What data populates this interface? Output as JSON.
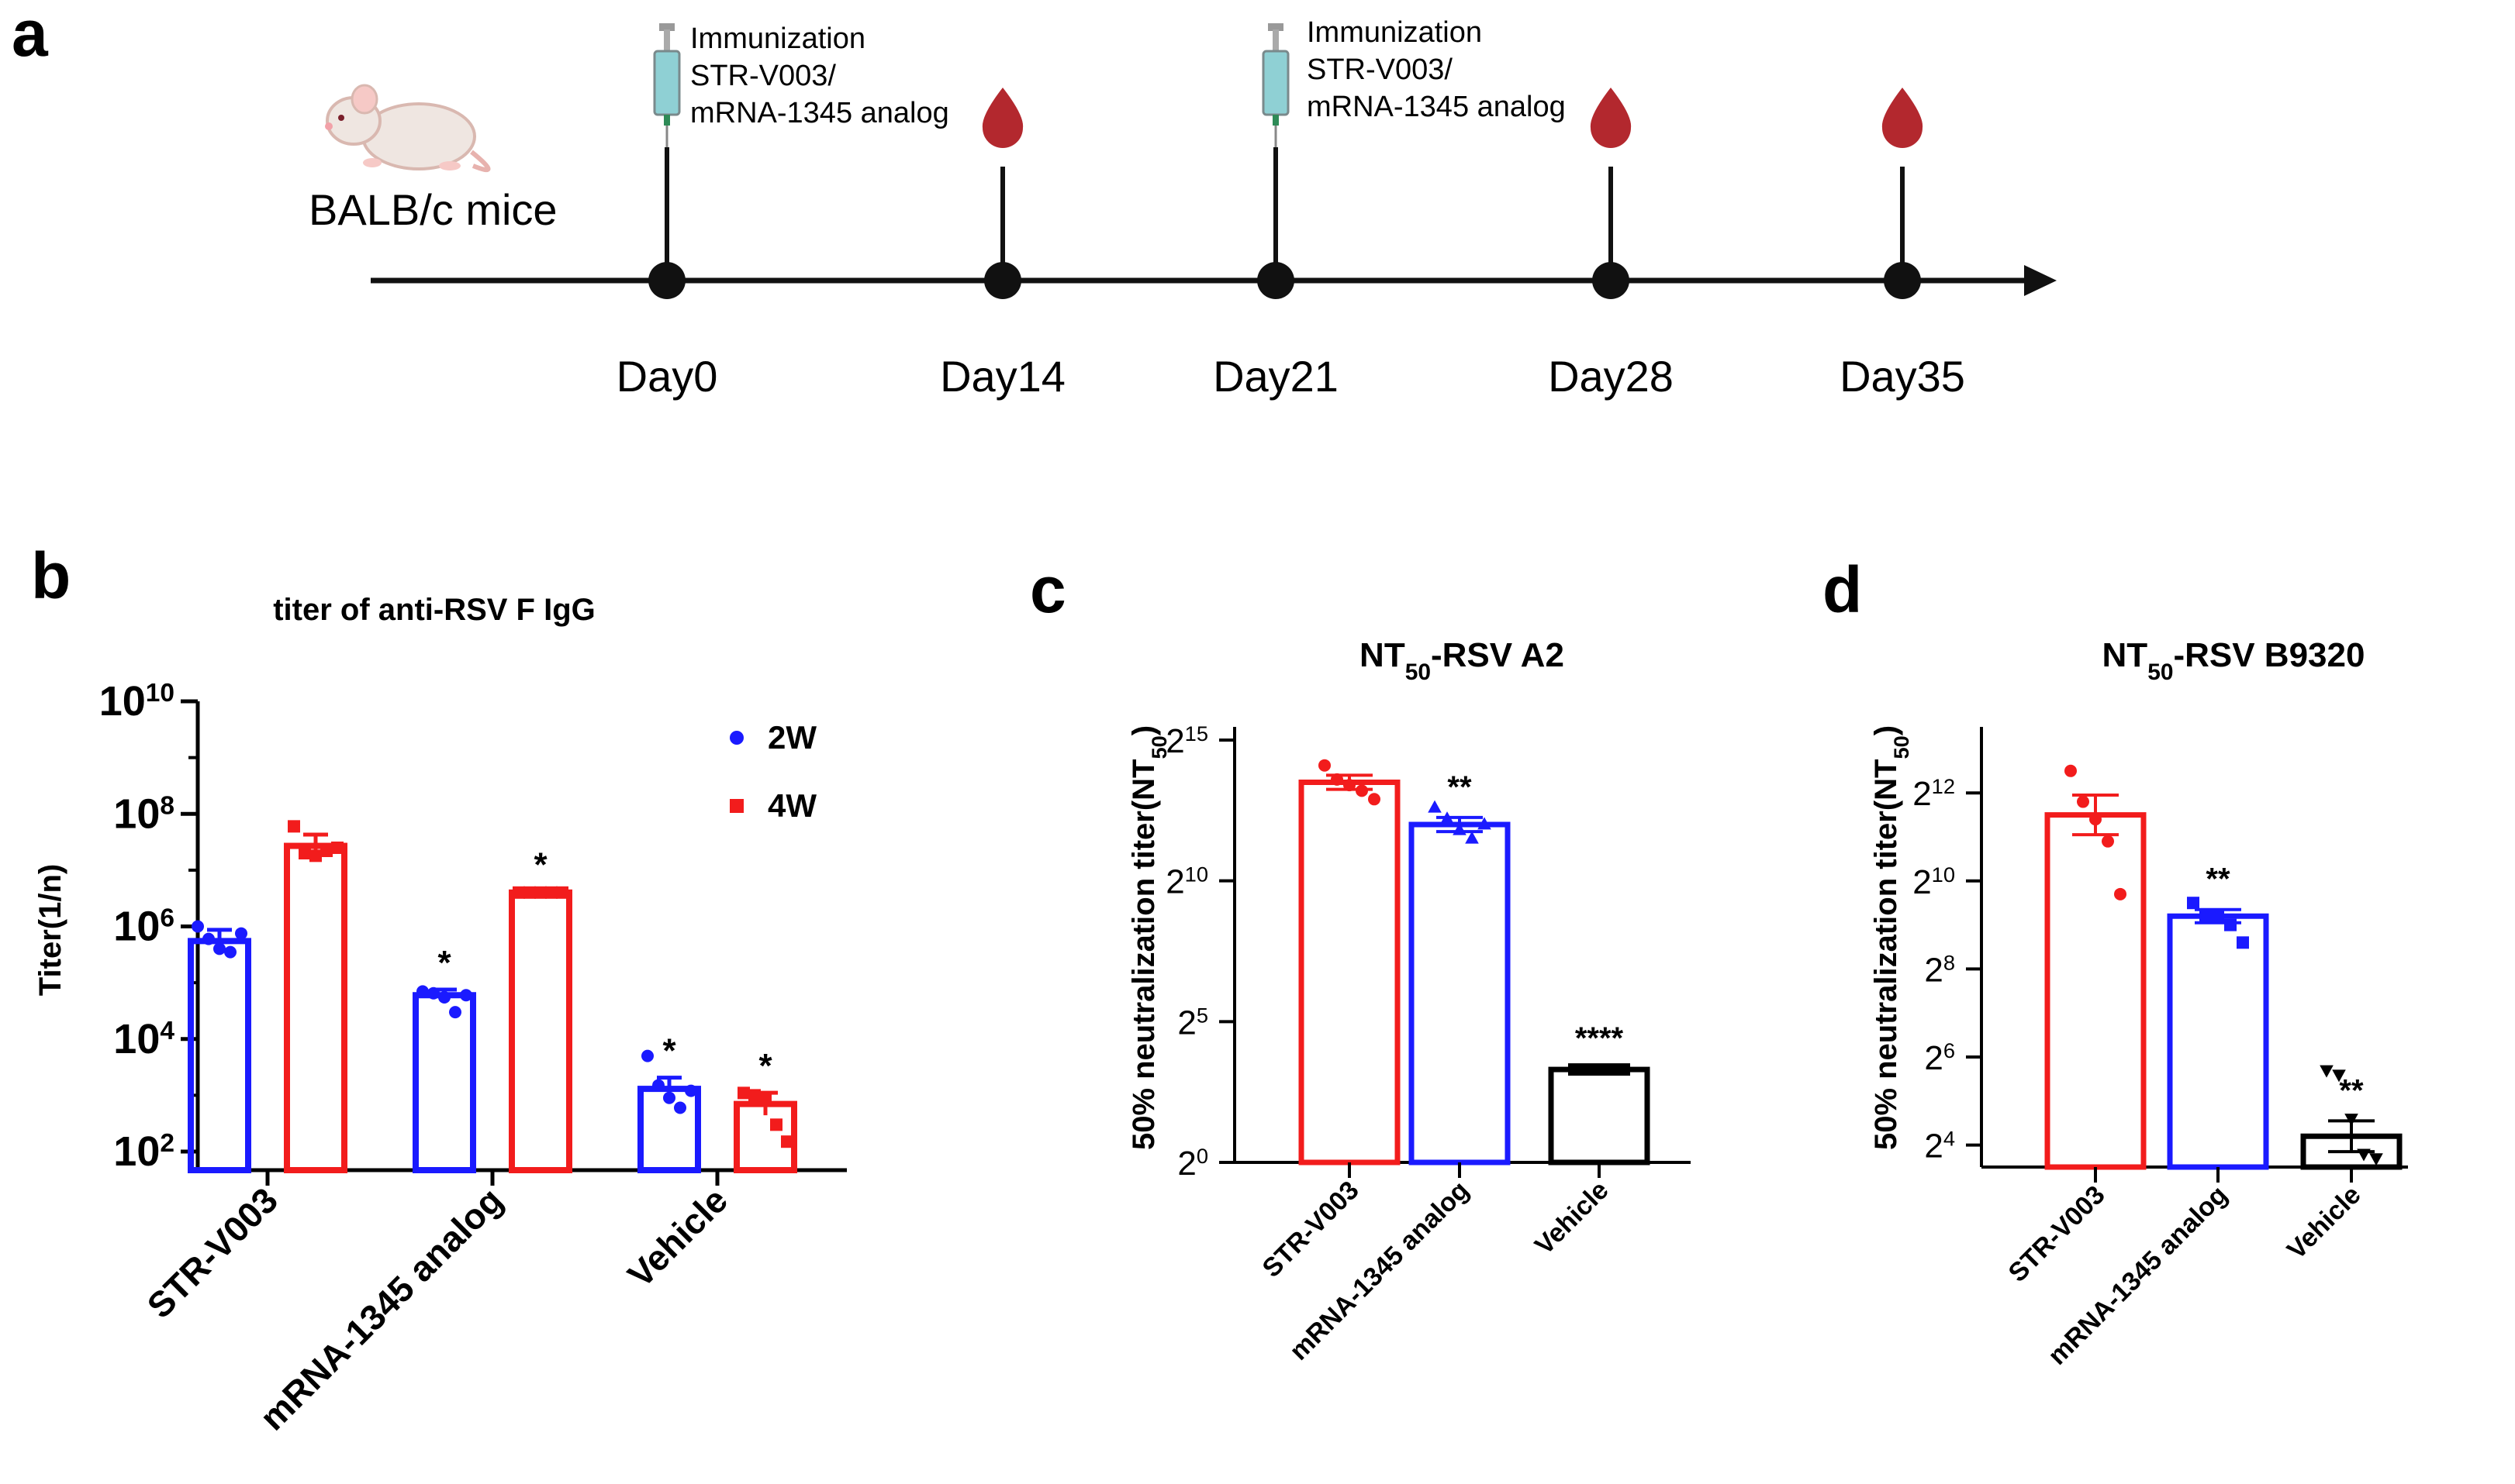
{
  "panels": {
    "a": "a",
    "b": "b",
    "c": "c",
    "d": "d"
  },
  "timeline": {
    "subject": "BALB/c mice",
    "immunization": {
      "title": "Immunization",
      "line1": "STR-V003/",
      "line2": "mRNA-1345 analog"
    },
    "days": [
      "Day0",
      "Day14",
      "Day21",
      "Day28",
      "Day35"
    ],
    "immunization_days": [
      "Day0",
      "Day21"
    ],
    "bleed_days": [
      "Day14",
      "Day28",
      "Day35"
    ],
    "colors": {
      "axis": "#111111",
      "blood": "#b3282e",
      "syringe": "#8fd0d4"
    }
  },
  "colors": {
    "blue": "#1a1aff",
    "red": "#f21c1c",
    "black": "#000000"
  },
  "chart_data": [
    {
      "panel": "b",
      "type": "bar",
      "title": "titer of anti-RSV F IgG",
      "ylabel": "Titer(1/n)",
      "yscale": "log10",
      "ylim": [
        100,
        10000000000
      ],
      "yticks": [
        {
          "base": "10",
          "exp": "10",
          "value": 10000000000
        },
        {
          "base": "10",
          "exp": "8",
          "value": 100000000
        },
        {
          "base": "10",
          "exp": "6",
          "value": 1000000
        },
        {
          "base": "10",
          "exp": "4",
          "value": 10000
        },
        {
          "base": "10",
          "exp": "2",
          "value": 100
        }
      ],
      "categories": [
        "STR-V003",
        "mRNA-1345 analog",
        "Vehicle"
      ],
      "legend": "top-right",
      "series": [
        {
          "name": "2W",
          "color": "#1a1aff",
          "marker": "circle",
          "values": [
            550000,
            60000,
            1300
          ],
          "sem": [
            0.2,
            0.1,
            0.2
          ],
          "points": [
            [
              1000000,
              600000,
              400000,
              350000,
              750000
            ],
            [
              70000,
              65000,
              55000,
              30000,
              60000
            ],
            [
              5000,
              1500,
              900,
              600,
              1200
            ]
          ],
          "significance": [
            "",
            "*",
            "*"
          ]
        },
        {
          "name": "4W",
          "color": "#f21c1c",
          "marker": "square",
          "values": [
            27000000,
            4000000,
            700
          ],
          "sem": [
            0.2,
            0.02,
            0.2
          ],
          "points": [
            [
              60000000,
              20000000,
              18000000,
              22000000,
              25000000
            ],
            [
              4000000,
              4000000,
              4000000,
              4000000,
              4000000
            ],
            [
              1100,
              1000,
              900,
              300,
              150
            ]
          ],
          "significance": [
            "",
            "*",
            "*"
          ]
        }
      ]
    },
    {
      "panel": "c",
      "type": "bar",
      "title": "NT₅₀-RSV A2",
      "ylabel": "50% neutralization titer(NT₅₀)",
      "yscale": "log2",
      "ylim": [
        0,
        15
      ],
      "yticks": [
        {
          "base": "2",
          "exp": "15",
          "value": 15
        },
        {
          "base": "2",
          "exp": "10",
          "value": 10
        },
        {
          "base": "2",
          "exp": "5",
          "value": 5
        },
        {
          "base": "2",
          "exp": "0",
          "value": 0
        }
      ],
      "categories": [
        "STR-V003",
        "mRNA-1345 analog",
        "Vehicle"
      ],
      "colors": [
        "#f21c1c",
        "#1a1aff",
        "#000000"
      ],
      "markers": [
        "circle",
        "triangle",
        "square"
      ],
      "values": [
        13.5,
        12.0,
        3.3
      ],
      "sem": [
        0.25,
        0.25,
        0.03
      ],
      "points": [
        [
          14.1,
          13.6,
          13.4,
          13.2,
          12.9
        ],
        [
          12.6,
          12.2,
          11.8,
          11.5,
          12.0
        ],
        [
          3.3,
          3.3,
          3.3,
          3.3,
          3.3
        ]
      ],
      "significance": [
        "",
        "**",
        "****"
      ]
    },
    {
      "panel": "d",
      "type": "bar",
      "title": "NT₅₀-RSV B9320",
      "ylabel": "50% neutralization titer(NT₅₀)",
      "yscale": "log2",
      "ylim": [
        3.5,
        13.5
      ],
      "yticks": [
        {
          "base": "2",
          "exp": "12",
          "value": 12
        },
        {
          "base": "2",
          "exp": "10",
          "value": 10
        },
        {
          "base": "2",
          "exp": "8",
          "value": 8
        },
        {
          "base": "2",
          "exp": "6",
          "value": 6
        },
        {
          "base": "2",
          "exp": "4",
          "value": 4
        }
      ],
      "categories": [
        "STR-V003",
        "mRNA-1345 analog",
        "Vehicle"
      ],
      "colors": [
        "#f21c1c",
        "#1a1aff",
        "#000000"
      ],
      "markers": [
        "circle",
        "square",
        "triangle-down"
      ],
      "values": [
        11.5,
        9.2,
        4.2
      ],
      "sem": [
        0.45,
        0.15,
        0.35
      ],
      "points": [
        [
          12.5,
          11.8,
          11.4,
          10.9,
          9.7
        ],
        [
          9.5,
          9.2,
          9.2,
          9.0,
          8.6
        ],
        [
          5.7,
          5.6,
          4.6,
          3.8,
          3.7
        ]
      ],
      "significance": [
        "",
        "**",
        "**"
      ]
    }
  ]
}
